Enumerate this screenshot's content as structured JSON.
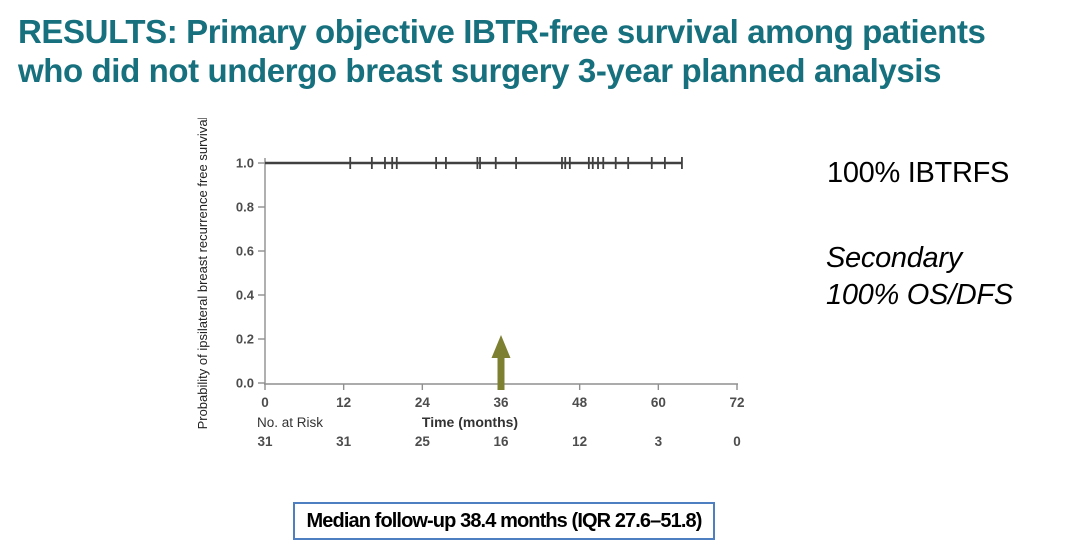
{
  "title": {
    "line1": "RESULTS: Primary objective IBTR-free survival among patients",
    "line2": "who did not undergo breast surgery 3-year planned analysis",
    "color": "#16707e"
  },
  "annotations": {
    "primary": "100% IBTRFS",
    "secondary_label": "Secondary",
    "secondary_value": "100% OS/DFS"
  },
  "footer_box": {
    "text": "Median follow-up 38.4 months (IQR 27.6–51.8)",
    "border_color": "#4e7fc1"
  },
  "chart_data": {
    "type": "line",
    "subtype": "kaplan-meier",
    "title": "",
    "xlabel": "Time (months)",
    "ylabel": "Probability of ipsilateral breast recurrence free survival",
    "xlim": [
      0,
      72
    ],
    "ylim": [
      0.0,
      1.0
    ],
    "xticks": [
      0,
      12,
      24,
      36,
      48,
      60,
      72
    ],
    "yticks": [
      0.0,
      0.2,
      0.4,
      0.6,
      0.8,
      1.0
    ],
    "grid": false,
    "legend": "none",
    "series": [
      {
        "name": "IBTR-free survival",
        "x": [
          0,
          63.6
        ],
        "y": [
          1.0,
          1.0
        ],
        "color": "#404040"
      }
    ],
    "censor_marks_months": [
      13.0,
      16.3,
      18.3,
      19.4,
      20.1,
      26.1,
      27.6,
      32.4,
      32.8,
      35.2,
      38.3,
      45.3,
      45.8,
      46.5,
      49.4,
      50.0,
      50.8,
      51.6,
      53.5,
      55.4,
      59.0,
      61.0,
      63.6
    ],
    "arrow_annotation": {
      "x_month": 36,
      "color": "#7d8030"
    },
    "at_risk": {
      "label": "No. at Risk",
      "times": [
        0,
        12,
        24,
        36,
        48,
        60,
        72
      ],
      "counts": [
        31,
        31,
        25,
        16,
        12,
        3,
        0
      ]
    }
  }
}
